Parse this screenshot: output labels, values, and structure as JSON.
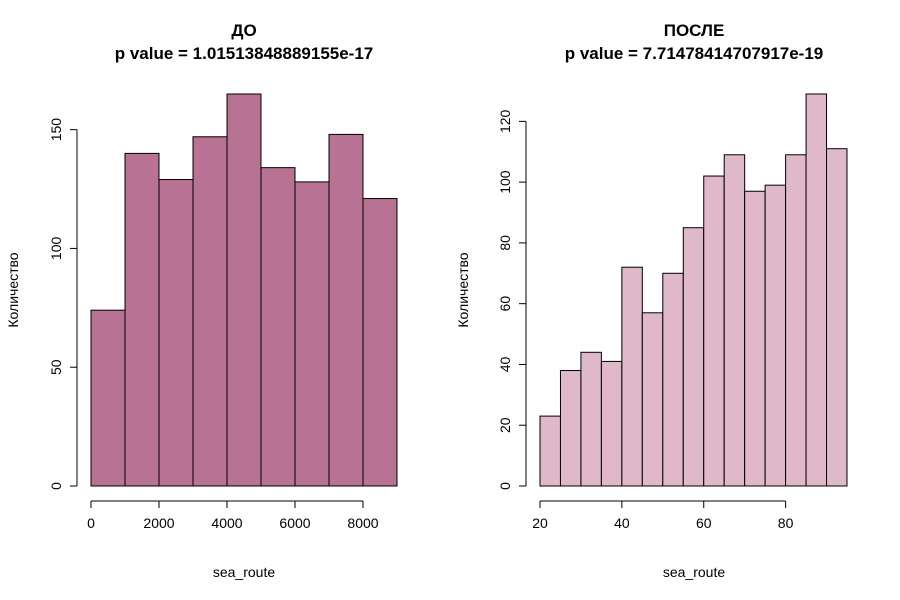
{
  "chart_data": [
    {
      "type": "bar",
      "title": "ДО",
      "subtitle": "p value = 1.01513848889155e-17",
      "xlabel": "sea_route",
      "ylabel": "Количество",
      "bins": [
        [
          0,
          1000
        ],
        [
          1000,
          2000
        ],
        [
          2000,
          3000
        ],
        [
          3000,
          4000
        ],
        [
          4000,
          5000
        ],
        [
          5000,
          6000
        ],
        [
          6000,
          7000
        ],
        [
          7000,
          8000
        ],
        [
          8000,
          9000
        ]
      ],
      "values": [
        74,
        140,
        129,
        147,
        165,
        134,
        128,
        148,
        121
      ],
      "xlim": [
        0,
        9000
      ],
      "ylim": [
        0,
        165
      ],
      "xticks": [
        0,
        2000,
        4000,
        6000,
        8000
      ],
      "yticks": [
        0,
        50,
        100,
        150
      ],
      "color": "#b87294",
      "grid": false
    },
    {
      "type": "bar",
      "title": "ПОСЛЕ",
      "subtitle": "p value = 7.71478414707917e-19",
      "xlabel": "sea_route",
      "ylabel": "Количество",
      "bins": [
        [
          20,
          25
        ],
        [
          25,
          30
        ],
        [
          30,
          35
        ],
        [
          35,
          40
        ],
        [
          40,
          45
        ],
        [
          45,
          50
        ],
        [
          50,
          55
        ],
        [
          55,
          60
        ],
        [
          60,
          65
        ],
        [
          65,
          70
        ],
        [
          70,
          75
        ],
        [
          75,
          80
        ],
        [
          80,
          85
        ],
        [
          85,
          90
        ],
        [
          90,
          95
        ]
      ],
      "values": [
        23,
        38,
        44,
        41,
        72,
        57,
        70,
        85,
        102,
        109,
        97,
        99,
        109,
        129,
        111
      ],
      "xlim": [
        20,
        95
      ],
      "ylim": [
        0,
        129
      ],
      "xticks": [
        20,
        40,
        60,
        80
      ],
      "yticks": [
        0,
        20,
        40,
        60,
        80,
        100,
        120
      ],
      "color": "#dfb8ca",
      "grid": false
    }
  ]
}
